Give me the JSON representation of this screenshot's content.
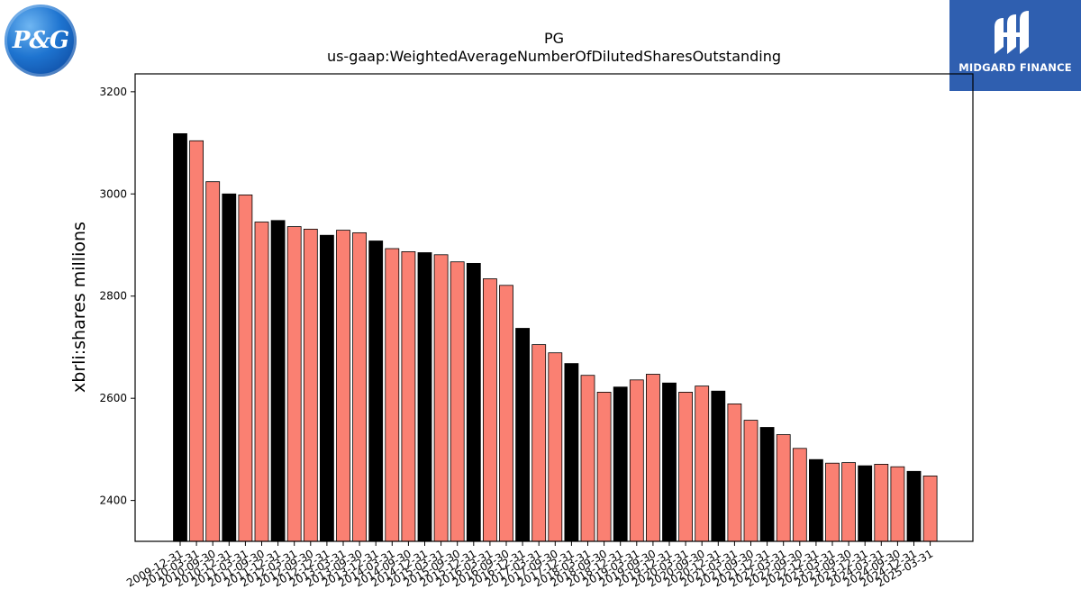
{
  "logos": {
    "left_text": "P&G",
    "right_text": "MIDGARD FINANCE"
  },
  "chart_data": {
    "type": "bar",
    "title": "PG",
    "subtitle": "us-gaap:WeightedAverageNumberOfDilutedSharesOutstanding",
    "xlabel": "",
    "ylabel": "xbrli:shares millions",
    "ylim": [
      2320,
      3235
    ],
    "yticks": [
      2400,
      2600,
      2800,
      3000,
      3200
    ],
    "grid": false,
    "categories": [
      "2009-12-31",
      "2010-03-31",
      "2010-09-30",
      "2010-12-31",
      "2011-03-31",
      "2011-09-30",
      "2011-12-31",
      "2012-03-31",
      "2012-09-30",
      "2012-12-31",
      "2013-03-31",
      "2013-09-30",
      "2013-12-31",
      "2014-03-31",
      "2014-09-30",
      "2014-12-31",
      "2015-03-31",
      "2015-09-30",
      "2015-12-31",
      "2016-03-31",
      "2016-09-30",
      "2016-12-31",
      "2017-03-31",
      "2017-09-30",
      "2017-12-31",
      "2018-03-31",
      "2018-09-30",
      "2018-12-31",
      "2019-03-31",
      "2019-09-30",
      "2019-12-31",
      "2020-03-31",
      "2020-09-30",
      "2020-12-31",
      "2021-03-31",
      "2021-09-30",
      "2021-12-31",
      "2022-03-31",
      "2022-09-30",
      "2022-12-31",
      "2023-03-31",
      "2023-09-30",
      "2023-12-31",
      "2024-03-31",
      "2024-09-30",
      "2024-12-31",
      "2025-03-31"
    ],
    "values": [
      3118,
      3104,
      3024,
      3000,
      2998,
      2945,
      2948,
      2936,
      2931,
      2919,
      2929,
      2924,
      2908,
      2893,
      2887,
      2885,
      2881,
      2867,
      2864,
      2834,
      2821,
      2737,
      2705,
      2689,
      2668,
      2645,
      2612,
      2622,
      2636,
      2647,
      2630,
      2612,
      2624,
      2614,
      2589,
      2557,
      2543,
      2529,
      2502,
      2480,
      2473,
      2474,
      2468,
      2471,
      2466,
      2457,
      2448
    ],
    "bar_colors": {
      "q4": "#000000",
      "other": "#fa8072"
    },
    "bar_edge_color": "#000000"
  }
}
